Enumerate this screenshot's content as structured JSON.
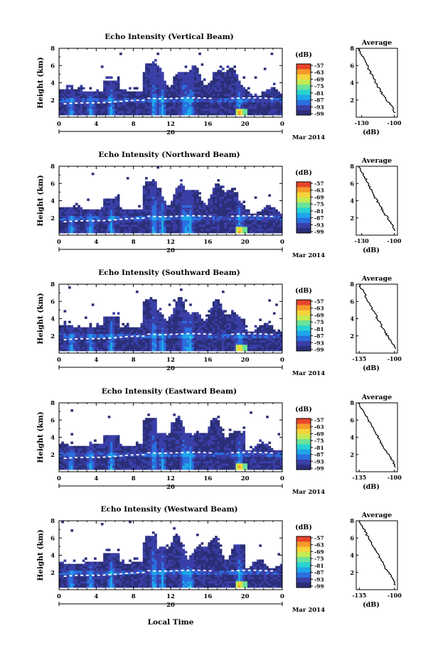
{
  "figure": {
    "xlabel": "Local Time",
    "month_label": "Mar 2014",
    "date_label": "20"
  },
  "colorbar": {
    "unit": "(dB)",
    "ticks": [
      "-57",
      "-63",
      "-69",
      "-75",
      "-81",
      "-87",
      "-93",
      "-99"
    ],
    "colors": [
      "#2b2f78",
      "#3a3fa8",
      "#2a6fe0",
      "#1fa6ea",
      "#29d3d0",
      "#6be39a",
      "#c5ea52",
      "#f6d33a",
      "#f69a2a",
      "#e8452a"
    ]
  },
  "chart_data": [
    {
      "type": "heatmap",
      "title": "Echo Intensity (Vertical Beam)",
      "ylabel": "Height (km)",
      "x_ticks": [
        "0",
        "4",
        "8",
        "12",
        "16",
        "20",
        "0"
      ],
      "y_ticks": [
        "2",
        "4",
        "6",
        "8"
      ],
      "xlim": [
        0,
        24
      ],
      "ylim": [
        0,
        8
      ],
      "clim": [
        -99,
        -57
      ],
      "avg_profile": {
        "title": "Average",
        "xlabel": "(dB)",
        "x_ticks": [
          "-130",
          "-100"
        ],
        "xlim": [
          -135,
          -97
        ],
        "y_ticks": [
          "2",
          "4",
          "6",
          "8"
        ],
        "heights": [
          8.0,
          7.5,
          7.0,
          6.5,
          6.0,
          5.5,
          5.0,
          4.5,
          4.0,
          3.5,
          3.0,
          2.5,
          2.0,
          1.5,
          1.0,
          0.5
        ],
        "values": [
          -133,
          -131,
          -129,
          -127,
          -125,
          -123,
          -121,
          -119,
          -117,
          -115,
          -112,
          -110,
          -107,
          -104,
          -101,
          -99
        ]
      }
    },
    {
      "type": "heatmap",
      "title": "Echo Intensity (Northward Beam)",
      "ylabel": "Height (km)",
      "x_ticks": [
        "0",
        "4",
        "8",
        "12",
        "16",
        "20",
        "0"
      ],
      "y_ticks": [
        "2",
        "4",
        "6",
        "8"
      ],
      "xlim": [
        0,
        24
      ],
      "ylim": [
        0,
        8
      ],
      "clim": [
        -99,
        -57
      ],
      "avg_profile": {
        "title": "Average",
        "xlabel": "(dB)",
        "x_ticks": [
          "-130",
          "-100"
        ],
        "xlim": [
          -135,
          -97
        ],
        "y_ticks": [
          "2",
          "4",
          "6",
          "8"
        ],
        "heights": [
          8.0,
          7.5,
          7.0,
          6.5,
          6.0,
          5.5,
          5.0,
          4.5,
          4.0,
          3.5,
          3.0,
          2.5,
          2.0,
          1.5,
          1.0,
          0.5
        ],
        "values": [
          -133,
          -131,
          -128,
          -126,
          -124,
          -122,
          -120,
          -118,
          -116,
          -114,
          -111,
          -109,
          -106,
          -103,
          -101,
          -99
        ]
      }
    },
    {
      "type": "heatmap",
      "title": "Echo Intensity (Southward Beam)",
      "ylabel": "Height (km)",
      "x_ticks": [
        "0",
        "4",
        "8",
        "12",
        "16",
        "20",
        "0"
      ],
      "y_ticks": [
        "2",
        "4",
        "6",
        "8"
      ],
      "xlim": [
        0,
        24
      ],
      "ylim": [
        0,
        8
      ],
      "clim": [
        -99,
        -57
      ],
      "avg_profile": {
        "title": "Average",
        "xlabel": "(dB)",
        "x_ticks": [
          "-135",
          "-100"
        ],
        "xlim": [
          -138,
          -97
        ],
        "y_ticks": [
          "2",
          "4",
          "6",
          "8"
        ],
        "heights": [
          8.0,
          7.5,
          7.0,
          6.5,
          6.0,
          5.5,
          5.0,
          4.5,
          4.0,
          3.5,
          3.0,
          2.5,
          2.0,
          1.5,
          1.0,
          0.5
        ],
        "values": [
          -135,
          -133,
          -130,
          -128,
          -126,
          -124,
          -121,
          -119,
          -117,
          -114,
          -112,
          -110,
          -107,
          -104,
          -101,
          -99
        ]
      }
    },
    {
      "type": "heatmap",
      "title": "Echo Intensity (Eastward Beam)",
      "ylabel": "Height (km)",
      "x_ticks": [
        "0",
        "4",
        "8",
        "12",
        "16",
        "20",
        "0"
      ],
      "y_ticks": [
        "2",
        "4",
        "6",
        "8"
      ],
      "xlim": [
        0,
        24
      ],
      "ylim": [
        0,
        8
      ],
      "clim": [
        -99,
        -57
      ],
      "avg_profile": {
        "title": "Average",
        "xlabel": "(dB)",
        "x_ticks": [
          "-135",
          "-100"
        ],
        "xlim": [
          -138,
          -97
        ],
        "y_ticks": [
          "2",
          "4",
          "6",
          "8"
        ],
        "heights": [
          8.0,
          7.5,
          7.0,
          6.5,
          6.0,
          5.5,
          5.0,
          4.5,
          4.0,
          3.5,
          3.0,
          2.5,
          2.0,
          1.5,
          1.0,
          0.5
        ],
        "values": [
          -135,
          -133,
          -131,
          -128,
          -126,
          -124,
          -121,
          -119,
          -116,
          -114,
          -112,
          -109,
          -106,
          -103,
          -101,
          -99
        ]
      }
    },
    {
      "type": "heatmap",
      "title": "Echo Intensity (Westward Beam)",
      "ylabel": "Height (km)",
      "x_ticks": [
        "0",
        "4",
        "8",
        "12",
        "16",
        "20",
        "0"
      ],
      "y_ticks": [
        "2",
        "4",
        "6",
        "8"
      ],
      "xlim": [
        0,
        24
      ],
      "ylim": [
        0,
        8
      ],
      "clim": [
        -99,
        -57
      ],
      "avg_profile": {
        "title": "Average",
        "xlabel": "(dB)",
        "x_ticks": [
          "-135",
          "-100"
        ],
        "xlim": [
          -138,
          -97
        ],
        "y_ticks": [
          "2",
          "4",
          "6",
          "8"
        ],
        "heights": [
          8.0,
          7.5,
          7.0,
          6.5,
          6.0,
          5.5,
          5.0,
          4.5,
          4.0,
          3.5,
          3.0,
          2.5,
          2.0,
          1.5,
          1.0,
          0.5
        ],
        "values": [
          -135,
          -133,
          -130,
          -128,
          -126,
          -123,
          -121,
          -119,
          -116,
          -114,
          -111,
          -109,
          -106,
          -103,
          -101,
          -99
        ]
      }
    }
  ]
}
